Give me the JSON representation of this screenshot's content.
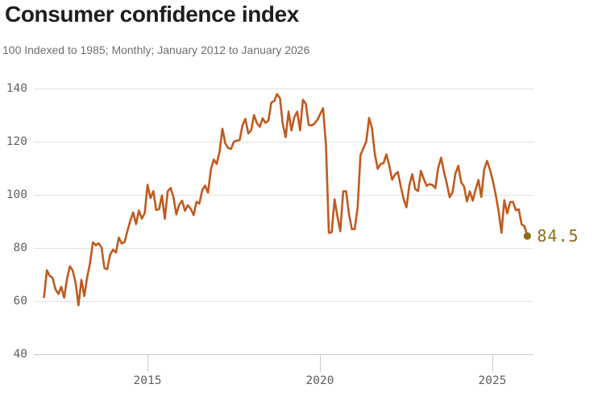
{
  "header": {
    "title": "Consumer confidence index",
    "subtitle": "100 Indexed to 1985; Monthly; January 2012 to January 2026"
  },
  "chart_data": {
    "type": "line",
    "title": "Consumer confidence index",
    "subtitle": "100 Indexed to 1985; Monthly; January 2012 to January 2026",
    "x_start": "2012-01",
    "x_end": "2026-01",
    "interval": "monthly",
    "xlabel": "",
    "ylabel": "",
    "ylim": [
      40,
      145
    ],
    "grid": "horizontal",
    "legend": "none",
    "y_tick_labels": [
      140,
      120,
      100,
      80,
      60,
      40
    ],
    "x_tick_labels": [
      "2015",
      "2020",
      "2025"
    ],
    "last_value": 84.5,
    "end_label": "84.5",
    "colors": {
      "line": "#c05a1e",
      "end_point": "#8c6d18"
    },
    "series": [
      {
        "name": "Consumer confidence index",
        "values": [
          61.5,
          71.6,
          69.5,
          68.7,
          64.4,
          62.7,
          65.4,
          61.3,
          68.4,
          73.1,
          71.5,
          66.7,
          58.4,
          68.0,
          61.9,
          69.0,
          74.3,
          82.1,
          81.0,
          81.8,
          80.2,
          72.4,
          72.0,
          77.5,
          79.4,
          78.3,
          83.9,
          81.7,
          82.2,
          86.4,
          90.3,
          93.4,
          89.0,
          94.1,
          91.0,
          93.1,
          103.8,
          98.8,
          101.4,
          94.3,
          94.6,
          99.8,
          91.0,
          101.3,
          102.6,
          99.1,
          92.6,
          96.3,
          97.8,
          94.0,
          96.1,
          94.7,
          92.4,
          97.4,
          96.7,
          101.8,
          103.5,
          100.8,
          109.5,
          113.3,
          111.6,
          116.1,
          124.9,
          119.4,
          117.6,
          117.3,
          120.0,
          120.4,
          120.6,
          126.2,
          128.6,
          123.1,
          124.3,
          130.0,
          127.0,
          125.6,
          128.8,
          127.1,
          127.9,
          134.7,
          135.3,
          137.9,
          136.4,
          126.6,
          121.7,
          131.4,
          124.2,
          129.2,
          131.3,
          124.3,
          135.8,
          134.2,
          126.3,
          126.1,
          126.8,
          128.2,
          130.4,
          132.6,
          118.8,
          85.7,
          85.9,
          98.3,
          91.7,
          86.3,
          101.3,
          101.4,
          92.9,
          87.1,
          87.1,
          95.2,
          114.9,
          117.5,
          120.0,
          128.9,
          125.1,
          115.2,
          109.8,
          111.6,
          111.9,
          115.2,
          111.1,
          105.7,
          107.6,
          108.6,
          103.2,
          98.4,
          95.3,
          103.6,
          107.8,
          102.2,
          101.4,
          109.0,
          106.0,
          103.4,
          104.0,
          103.7,
          102.5,
          110.1,
          114.0,
          108.7,
          104.3,
          99.1,
          101.0,
          108.0,
          110.9,
          104.8,
          103.1,
          97.5,
          101.3,
          97.8,
          101.9,
          105.6,
          99.2,
          109.6,
          112.8,
          109.5,
          105.3,
          100.1,
          93.9,
          85.7,
          98.0,
          93.0,
          97.2,
          97.4,
          94.2,
          94.6,
          88.9,
          88.2,
          84.5
        ]
      }
    ]
  }
}
